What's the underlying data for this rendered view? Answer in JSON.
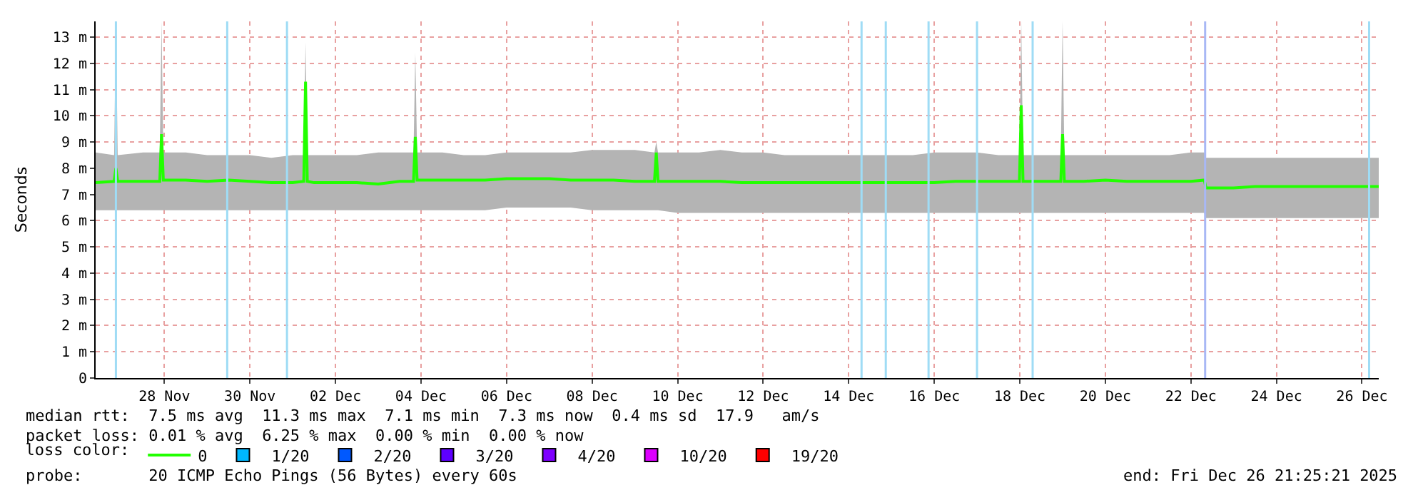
{
  "chart_data": {
    "type": "line",
    "ylabel": "Seconds",
    "x": [
      "2025-11-26T21:25",
      "2025-11-27T07:48",
      "2025-11-27T08:48",
      "2025-11-27T09:48",
      "2025-11-28T00:00",
      "2025-11-28T09:24",
      "2025-11-28T10:24",
      "2025-11-28T11:24",
      "2025-11-29T00:00",
      "2025-11-29T12:00",
      "2025-11-30T00:00",
      "2025-11-30T12:00",
      "2025-12-01T00:00",
      "2025-12-01T12:00",
      "2025-12-01T18:12",
      "2025-12-01T19:12",
      "2025-12-01T20:12",
      "2025-12-02T00:00",
      "2025-12-02T12:00",
      "2025-12-03T00:00",
      "2025-12-03T12:00",
      "2025-12-04T00:00",
      "2025-12-04T07:48",
      "2025-12-04T08:48",
      "2025-12-04T09:48",
      "2025-12-05T00:00",
      "2025-12-05T12:00",
      "2025-12-06T00:00",
      "2025-12-06T12:00",
      "2025-12-07T00:00",
      "2025-12-07T12:00",
      "2025-12-08T00:00",
      "2025-12-08T12:00",
      "2025-12-09T00:00",
      "2025-12-09T12:00",
      "2025-12-09T23:00",
      "2025-12-10T00:00",
      "2025-12-10T01:00",
      "2025-12-10T12:00",
      "2025-12-11T00:00",
      "2025-12-11T12:00",
      "2025-12-12T00:00",
      "2025-12-12T12:00",
      "2025-12-13T00:00",
      "2025-12-13T12:00",
      "2025-12-14T00:00",
      "2025-12-14T12:00",
      "2025-12-15T00:00",
      "2025-12-15T12:00",
      "2025-12-16T00:00",
      "2025-12-16T12:00",
      "2025-12-17T00:00",
      "2025-12-17T12:00",
      "2025-12-18T00:00",
      "2025-12-18T11:48",
      "2025-12-18T12:48",
      "2025-12-18T13:48",
      "2025-12-19T00:00",
      "2025-12-19T11:00",
      "2025-12-19T12:00",
      "2025-12-19T13:00",
      "2025-12-20T00:00",
      "2025-12-20T12:00",
      "2025-12-21T00:00",
      "2025-12-21T12:00",
      "2025-12-22T00:00",
      "2025-12-22T12:00",
      "2025-12-22T19:30",
      "2025-12-22T20:30",
      "2025-12-23T12:00",
      "2025-12-24T00:00",
      "2025-12-24T12:00",
      "2025-12-25T00:00",
      "2025-12-25T12:00",
      "2025-12-26T00:00",
      "2025-12-26T12:00",
      "2025-12-26T21:25"
    ],
    "series": [
      {
        "name": "0",
        "color": "#22ff00",
        "values": [
          7.45,
          7.5,
          8.0,
          7.5,
          7.5,
          7.5,
          9.3,
          7.55,
          7.55,
          7.5,
          7.55,
          7.5,
          7.45,
          7.45,
          7.5,
          11.3,
          7.5,
          7.45,
          7.45,
          7.45,
          7.4,
          7.5,
          7.5,
          9.2,
          7.55,
          7.55,
          7.55,
          7.55,
          7.6,
          7.6,
          7.6,
          7.55,
          7.55,
          7.55,
          7.5,
          7.5,
          8.6,
          7.5,
          7.5,
          7.5,
          7.5,
          7.45,
          7.45,
          7.45,
          7.45,
          7.45,
          7.45,
          7.45,
          7.45,
          7.45,
          7.45,
          7.5,
          7.5,
          7.5,
          7.5,
          10.4,
          7.5,
          7.5,
          7.5,
          9.3,
          7.5,
          7.5,
          7.55,
          7.5,
          7.5,
          7.5,
          7.5,
          7.55,
          7.25,
          7.25,
          7.3,
          7.3,
          7.3,
          7.3,
          7.3,
          7.3,
          7.3
        ],
        "lower": [
          6.4,
          6.4,
          6.4,
          6.4,
          6.4,
          6.4,
          6.4,
          6.4,
          6.4,
          6.4,
          6.4,
          6.4,
          6.4,
          6.4,
          6.4,
          6.4,
          6.4,
          6.4,
          6.4,
          6.4,
          6.4,
          6.4,
          6.4,
          6.4,
          6.4,
          6.4,
          6.4,
          6.4,
          6.5,
          6.5,
          6.5,
          6.5,
          6.4,
          6.4,
          6.4,
          6.4,
          6.4,
          6.4,
          6.3,
          6.3,
          6.3,
          6.3,
          6.3,
          6.3,
          6.3,
          6.3,
          6.3,
          6.3,
          6.3,
          6.3,
          6.3,
          6.3,
          6.3,
          6.3,
          6.3,
          6.3,
          6.3,
          6.3,
          6.3,
          6.3,
          6.3,
          6.3,
          6.3,
          6.3,
          6.3,
          6.3,
          6.3,
          6.3,
          6.1,
          6.1,
          6.1,
          6.1,
          6.1,
          6.1,
          6.1,
          6.1,
          6.1
        ],
        "upper": [
          8.6,
          8.5,
          13.6,
          8.5,
          8.6,
          8.6,
          13.6,
          8.6,
          8.6,
          8.5,
          8.5,
          8.5,
          8.4,
          8.5,
          8.5,
          12.8,
          8.5,
          8.5,
          8.5,
          8.5,
          8.6,
          8.6,
          8.6,
          12.4,
          8.6,
          8.6,
          8.5,
          8.5,
          8.6,
          8.6,
          8.6,
          8.6,
          8.7,
          8.7,
          8.7,
          8.6,
          9.0,
          8.6,
          8.6,
          8.6,
          8.7,
          8.6,
          8.6,
          8.5,
          8.5,
          8.5,
          8.5,
          8.5,
          8.5,
          8.5,
          8.6,
          8.6,
          8.6,
          8.5,
          8.5,
          13.6,
          8.5,
          8.5,
          8.5,
          13.6,
          8.5,
          8.5,
          8.5,
          8.5,
          8.5,
          8.5,
          8.6,
          8.6,
          8.4,
          8.4,
          8.4,
          8.4,
          8.4,
          8.4,
          8.4,
          8.4,
          8.4
        ]
      },
      {
        "name": "1/20",
        "color": "#00b8ff",
        "values": [
          null,
          null,
          null,
          null,
          null,
          null,
          null,
          null,
          null,
          null,
          null,
          null,
          null,
          null,
          null,
          null,
          null,
          null,
          null,
          null,
          null,
          null,
          null,
          null,
          null,
          null,
          null,
          null,
          null,
          null,
          null,
          null,
          null,
          null,
          null,
          null,
          null,
          null,
          null,
          null,
          null,
          null,
          null,
          null,
          null,
          null,
          null,
          null,
          null,
          null,
          null,
          null,
          null,
          null,
          null,
          null,
          null,
          null,
          null,
          null,
          null,
          null,
          null,
          null,
          null,
          null,
          null,
          null,
          null,
          null,
          null,
          null,
          null,
          null,
          null,
          null,
          null
        ]
      },
      {
        "name": "2/20",
        "color": "#0059ff",
        "values": [
          null,
          null,
          null,
          null,
          null,
          null,
          null,
          null,
          null,
          null,
          null,
          null,
          null,
          null,
          null,
          null,
          null,
          null,
          null,
          null,
          null,
          null,
          null,
          null,
          null,
          null,
          null,
          null,
          null,
          null,
          null,
          null,
          null,
          null,
          null,
          null,
          null,
          null,
          null,
          null,
          null,
          null,
          null,
          null,
          null,
          null,
          null,
          null,
          null,
          null,
          null,
          null,
          null,
          null,
          null,
          null,
          null,
          null,
          null,
          null,
          null,
          null,
          null,
          null,
          null,
          null,
          null,
          null,
          null,
          null,
          null,
          null,
          null,
          null,
          null,
          null,
          null
        ]
      },
      {
        "name": "3/20",
        "color": "#5e00ff",
        "values": [
          null,
          null,
          null,
          null,
          null,
          null,
          null,
          null,
          null,
          null,
          null,
          null,
          null,
          null,
          null,
          null,
          null,
          null,
          null,
          null,
          null,
          null,
          null,
          null,
          null,
          null,
          null,
          null,
          null,
          null,
          null,
          null,
          null,
          null,
          null,
          null,
          null,
          null,
          null,
          null,
          null,
          null,
          null,
          null,
          null,
          null,
          null,
          null,
          null,
          null,
          null,
          null,
          null,
          null,
          null,
          null,
          null,
          null,
          null,
          null,
          null,
          null,
          null,
          null,
          null,
          null,
          null,
          null,
          null,
          null,
          null,
          null,
          null,
          null,
          null,
          null,
          null
        ]
      },
      {
        "name": "4/20",
        "color": "#7e00ff",
        "values": [
          null,
          null,
          null,
          null,
          null,
          null,
          null,
          null,
          null,
          null,
          null,
          null,
          null,
          null,
          null,
          null,
          null,
          null,
          null,
          null,
          null,
          null,
          null,
          null,
          null,
          null,
          null,
          null,
          null,
          null,
          null,
          null,
          null,
          null,
          null,
          null,
          null,
          null,
          null,
          null,
          null,
          null,
          null,
          null,
          null,
          null,
          null,
          null,
          null,
          null,
          null,
          null,
          null,
          null,
          null,
          null,
          null,
          null,
          null,
          null,
          null,
          null,
          null,
          null,
          null,
          null,
          null,
          null,
          null,
          null,
          null,
          null,
          null,
          null,
          null,
          null,
          null
        ]
      },
      {
        "name": "10/20",
        "color": "#dd00ff",
        "values": [
          null,
          null,
          null,
          null,
          null,
          null,
          null,
          null,
          null,
          null,
          null,
          null,
          null,
          null,
          null,
          null,
          null,
          null,
          null,
          null,
          null,
          null,
          null,
          null,
          null,
          null,
          null,
          null,
          null,
          null,
          null,
          null,
          null,
          null,
          null,
          null,
          null,
          null,
          null,
          null,
          null,
          null,
          null,
          null,
          null,
          null,
          null,
          null,
          null,
          null,
          null,
          null,
          null,
          null,
          null,
          null,
          null,
          null,
          null,
          null,
          null,
          null,
          null,
          null,
          null,
          null,
          null,
          null,
          null,
          null,
          null,
          null,
          null,
          null,
          null,
          null,
          null
        ]
      },
      {
        "name": "19/20",
        "color": "#ff0000",
        "values": [
          null,
          null,
          null,
          null,
          null,
          null,
          null,
          null,
          null,
          null,
          null,
          null,
          null,
          null,
          null,
          null,
          null,
          null,
          null,
          null,
          null,
          null,
          null,
          null,
          null,
          null,
          null,
          null,
          null,
          null,
          null,
          null,
          null,
          null,
          null,
          null,
          null,
          null,
          null,
          null,
          null,
          null,
          null,
          null,
          null,
          null,
          null,
          null,
          null,
          null,
          null,
          null,
          null,
          null,
          null,
          null,
          null,
          null,
          null,
          null,
          null,
          null,
          null,
          null,
          null,
          null,
          null,
          null,
          null,
          null,
          null,
          null,
          null,
          null,
          null,
          null,
          null
        ]
      }
    ],
    "legend_title": "loss color:",
    "legend": "bottom",
    "xlim": [
      "2025-11-26T21:25",
      "2025-12-26T21:25"
    ],
    "xticks": [
      {
        "value": "2025-11-28T12:00",
        "label": "28 Nov"
      },
      {
        "value": "2025-11-30T12:00",
        "label": "30 Nov"
      },
      {
        "value": "2025-12-02T12:00",
        "label": "02 Dec"
      },
      {
        "value": "2025-12-04T12:00",
        "label": "04 Dec"
      },
      {
        "value": "2025-12-06T12:00",
        "label": "06 Dec"
      },
      {
        "value": "2025-12-08T12:00",
        "label": "08 Dec"
      },
      {
        "value": "2025-12-10T12:00",
        "label": "10 Dec"
      },
      {
        "value": "2025-12-12T12:00",
        "label": "12 Dec"
      },
      {
        "value": "2025-12-14T12:00",
        "label": "14 Dec"
      },
      {
        "value": "2025-12-16T12:00",
        "label": "16 Dec"
      },
      {
        "value": "2025-12-18T12:00",
        "label": "18 Dec"
      },
      {
        "value": "2025-12-20T12:00",
        "label": "20 Dec"
      },
      {
        "value": "2025-12-22T12:00",
        "label": "22 Dec"
      },
      {
        "value": "2025-12-24T12:00",
        "label": "24 Dec"
      },
      {
        "value": "2025-12-26T12:00",
        "label": "26 Dec"
      }
    ],
    "ylim": [
      0,
      13.6
    ],
    "yticks": [
      0,
      {
        "value": 1,
        "label": "1 m"
      },
      {
        "value": 2,
        "label": "2 m"
      },
      {
        "value": 3,
        "label": "3 m"
      },
      {
        "value": 4,
        "label": "4 m"
      },
      {
        "value": 5,
        "label": "5 m"
      },
      {
        "value": 6,
        "label": "6 m"
      },
      {
        "value": 7,
        "label": "7 m"
      },
      {
        "value": 8,
        "label": "8 m"
      },
      {
        "value": 9,
        "label": "9 m"
      },
      {
        "value": 10,
        "label": "10 m"
      },
      {
        "value": 11,
        "label": "11 m"
      },
      {
        "value": 12,
        "label": "12 m"
      },
      {
        "value": 13,
        "label": "13 m"
      }
    ],
    "grid": true,
    "marker": "none",
    "line_style": "solid",
    "ref_lines": [
      {
        "axis": "x",
        "value": "2025-11-27T08:48",
        "color": "#9fdcf5"
      },
      {
        "axis": "x",
        "value": "2025-11-29T23:15",
        "color": "#9fdcf5"
      },
      {
        "axis": "x",
        "value": "2025-12-01T08:48",
        "color": "#9fdcf5"
      },
      {
        "axis": "x",
        "value": "2025-12-14T19:12",
        "color": "#9fdcf5"
      },
      {
        "axis": "x",
        "value": "2025-12-15T08:48",
        "color": "#9fdcf5"
      },
      {
        "axis": "x",
        "value": "2025-12-16T08:48",
        "color": "#9fdcf5"
      },
      {
        "axis": "x",
        "value": "2025-12-17T12:00",
        "color": "#9fdcf5"
      },
      {
        "axis": "x",
        "value": "2025-12-18T19:12",
        "color": "#9fdcf5"
      },
      {
        "axis": "x",
        "value": "2025-12-22T20:00",
        "color": "#a8b8f5"
      },
      {
        "axis": "x",
        "value": "2025-12-26T16:00",
        "color": "#9fdcf5"
      }
    ],
    "annotations": [
      "median rtt:  7.5 ms avg  11.3 ms max  7.1 ms min  7.3 ms now  0.4 ms sd  17.9   am/s",
      "packet loss: 0.01 % avg  6.25 % max  0.00 % min  0.00 % now",
      "probe:       20 ICMP Echo Pings (56 Bytes) every 60s",
      "end: Fri Dec 26 21:25:21 2025"
    ]
  }
}
